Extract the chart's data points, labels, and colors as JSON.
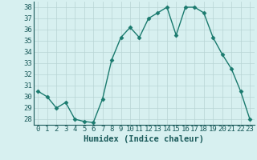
{
  "x": [
    0,
    1,
    2,
    3,
    4,
    5,
    6,
    7,
    8,
    9,
    10,
    11,
    12,
    13,
    14,
    15,
    16,
    17,
    18,
    19,
    20,
    21,
    22,
    23
  ],
  "y": [
    30.5,
    30.0,
    29.0,
    29.5,
    28.0,
    27.8,
    27.7,
    29.8,
    33.3,
    35.3,
    36.2,
    35.3,
    37.0,
    37.5,
    38.0,
    35.5,
    38.0,
    38.0,
    37.5,
    35.3,
    33.8,
    32.5,
    30.5,
    28.0
  ],
  "line_color": "#1a7a6e",
  "marker": "D",
  "marker_size": 2.5,
  "bg_color": "#d7f0f0",
  "grid_color": "#b8d4d4",
  "xlabel": "Humidex (Indice chaleur)",
  "xlabel_fontsize": 7.5,
  "ylim": [
    27.5,
    38.5
  ],
  "xlim": [
    -0.5,
    23.5
  ],
  "yticks": [
    28,
    29,
    30,
    31,
    32,
    33,
    34,
    35,
    36,
    37,
    38
  ],
  "xticks": [
    0,
    1,
    2,
    3,
    4,
    5,
    6,
    7,
    8,
    9,
    10,
    11,
    12,
    13,
    14,
    15,
    16,
    17,
    18,
    19,
    20,
    21,
    22,
    23
  ],
  "tick_fontsize": 6.5,
  "line_width": 1.0,
  "tick_color": "#1a5a5a",
  "label_color": "#1a5a5a"
}
